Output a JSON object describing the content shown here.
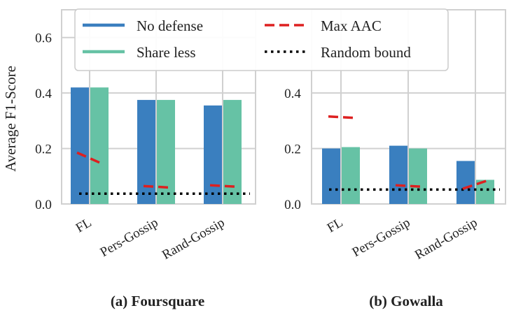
{
  "chart_data": [
    {
      "type": "bar",
      "title": "(a) Foursquare",
      "xlabel": "",
      "ylabel": "Average F1-Score",
      "ylim": [
        0,
        0.7
      ],
      "yticks": [
        "0.0",
        "0.2",
        "0.4",
        "0.6"
      ],
      "categories": [
        "FL",
        "Pers-Gossip",
        "Rand-Gossip"
      ],
      "series": [
        {
          "name": "No defense",
          "values": [
            0.42,
            0.375,
            0.355
          ]
        },
        {
          "name": "Share less",
          "values": [
            0.42,
            0.375,
            0.375
          ]
        }
      ],
      "max_aac": [
        0.165,
        0.062,
        0.065
      ],
      "random_bound": 0.037,
      "grid": true
    },
    {
      "type": "bar",
      "title": "(b) Gowalla",
      "xlabel": "",
      "ylabel": "",
      "ylim": [
        0,
        0.7
      ],
      "yticks": [
        "0.0",
        "0.2",
        "0.4"
      ],
      "categories": [
        "FL",
        "Pers-Gossip",
        "Rand-Gossip"
      ],
      "series": [
        {
          "name": "No defense",
          "values": [
            0.2,
            0.21,
            0.155
          ]
        },
        {
          "name": "Share less",
          "values": [
            0.205,
            0.2,
            0.087
          ]
        }
      ],
      "max_aac": [
        0.313,
        0.065,
        0.07
      ],
      "random_bound": 0.052,
      "grid": true
    }
  ],
  "legend": {
    "items": [
      {
        "label": "No defense",
        "kind": "line",
        "color": "#3a7fbf"
      },
      {
        "label": "Share less",
        "kind": "line",
        "color": "#66c2a5"
      },
      {
        "label": "Max AAC",
        "kind": "dashed",
        "color": "#dd2020"
      },
      {
        "label": "Random bound",
        "kind": "dotted",
        "color": "#000000"
      }
    ]
  },
  "colors": {
    "no_defense": "#3a7fbf",
    "share_less": "#66c2a5",
    "max_aac": "#dd2020",
    "random_bound": "#000000",
    "grid": "#d0d0d0"
  }
}
